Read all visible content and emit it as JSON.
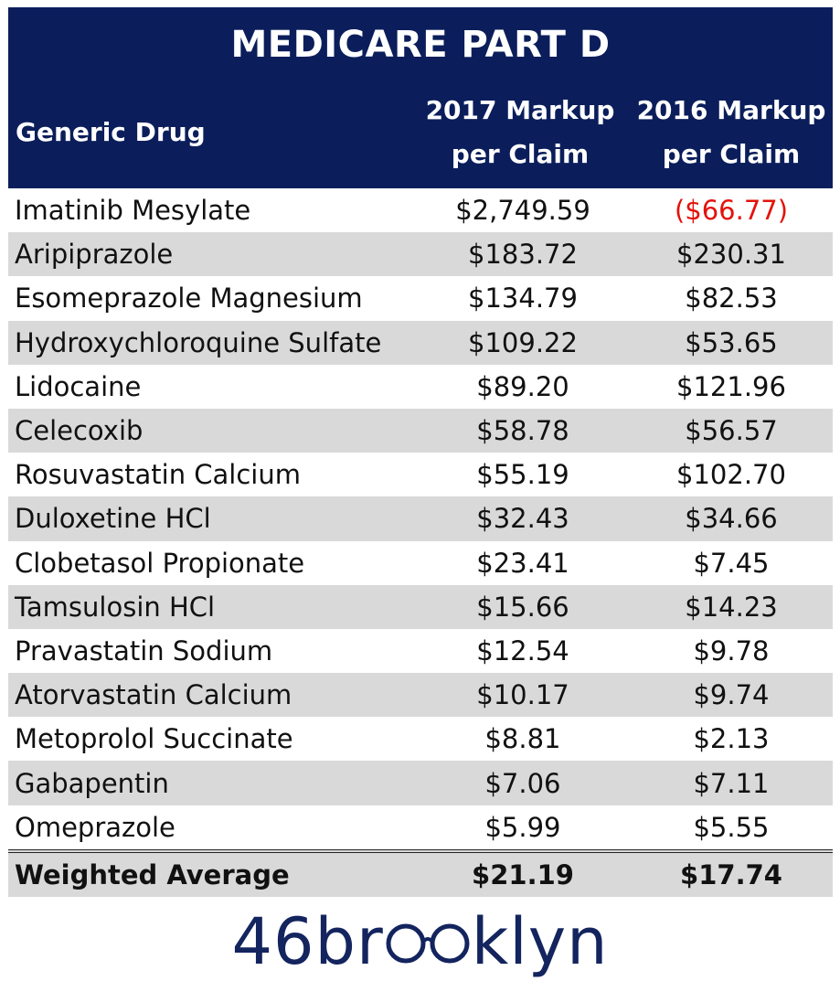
{
  "header": {
    "title": "MEDICARE PART D",
    "col_drug": "Generic Drug",
    "col_2017_line1": "2017 Markup",
    "col_2017_line2": "per Claim",
    "col_2016_line1": "2016 Markup",
    "col_2016_line2": "per Claim"
  },
  "rows": [
    {
      "drug": "Imatinib Mesylate",
      "y2017": "$2,749.59",
      "y2016": "($66.77)"
    },
    {
      "drug": "Aripiprazole",
      "y2017": "$183.72",
      "y2016": "$230.31"
    },
    {
      "drug": "Esomeprazole Magnesium",
      "y2017": "$134.79",
      "y2016": "$82.53"
    },
    {
      "drug": "Hydroxychloroquine Sulfate",
      "y2017": "$109.22",
      "y2016": "$53.65"
    },
    {
      "drug": "Lidocaine",
      "y2017": "$89.20",
      "y2016": "$121.96"
    },
    {
      "drug": "Celecoxib",
      "y2017": "$58.78",
      "y2016": "$56.57"
    },
    {
      "drug": "Rosuvastatin Calcium",
      "y2017": "$55.19",
      "y2016": "$102.70"
    },
    {
      "drug": "Duloxetine HCl",
      "y2017": "$32.43",
      "y2016": "$34.66"
    },
    {
      "drug": "Clobetasol Propionate",
      "y2017": "$23.41",
      "y2016": "$7.45"
    },
    {
      "drug": "Tamsulosin HCl",
      "y2017": "$15.66",
      "y2016": "$14.23"
    },
    {
      "drug": "Pravastatin Sodium",
      "y2017": "$12.54",
      "y2016": "$9.78"
    },
    {
      "drug": "Atorvastatin Calcium",
      "y2017": "$10.17",
      "y2016": "$9.74"
    },
    {
      "drug": "Metoprolol Succinate",
      "y2017": "$8.81",
      "y2016": "$2.13"
    },
    {
      "drug": "Gabapentin",
      "y2017": "$7.06",
      "y2016": "$7.11"
    },
    {
      "drug": "Omeprazole",
      "y2017": "$5.99",
      "y2016": "$5.55"
    }
  ],
  "total": {
    "label": "Weighted Average",
    "y2017": "$21.19",
    "y2016": "$17.74"
  },
  "logo": {
    "text_left": "46br",
    "text_right": "klyn",
    "full_text": "46brooklyn"
  },
  "colors": {
    "header_bg": "#0b1e5b",
    "shade": "#d9d9d9",
    "negative": "#e3120b",
    "logo": "#13245e"
  }
}
